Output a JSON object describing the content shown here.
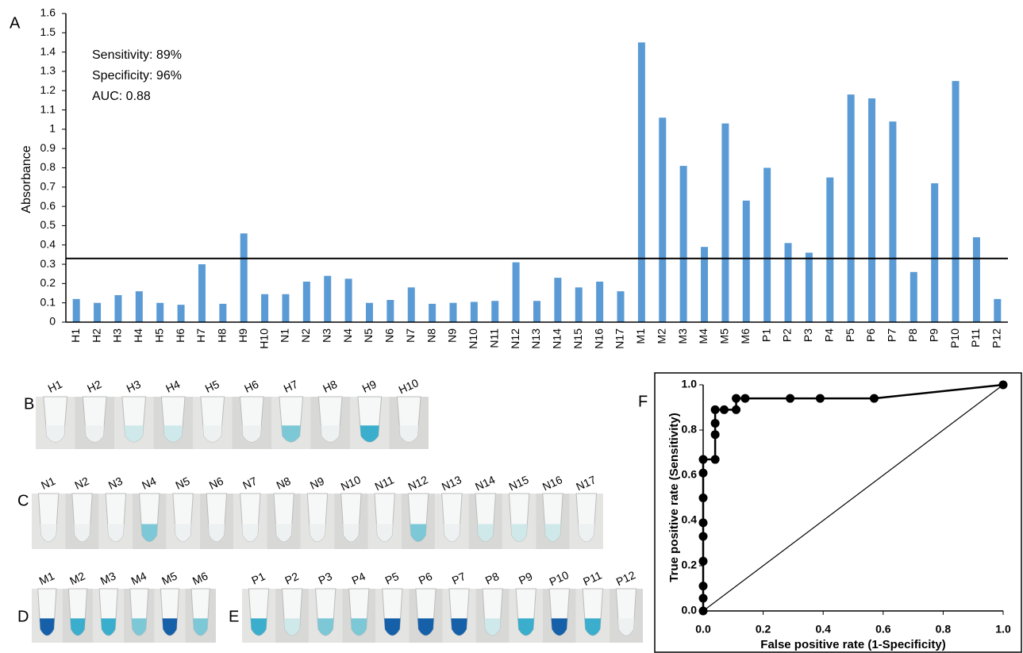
{
  "chart_data": [
    {
      "type": "bar",
      "panel": "A",
      "ylabel": "Absorbance",
      "annotations": [
        "Sensitivity: 89%",
        "Specificity: 96%",
        "AUC: 0.88"
      ],
      "categories": [
        "H1",
        "H2",
        "H3",
        "H4",
        "H5",
        "H6",
        "H7",
        "H8",
        "H9",
        "H10",
        "N1",
        "N2",
        "N3",
        "N4",
        "N5",
        "N6",
        "N7",
        "N8",
        "N9",
        "N10",
        "N11",
        "N12",
        "N13",
        "N14",
        "N15",
        "N16",
        "N17",
        "M1",
        "M2",
        "M3",
        "M4",
        "M5",
        "M6",
        "P1",
        "P2",
        "P3",
        "P4",
        "P5",
        "P6",
        "P7",
        "P8",
        "P9",
        "P10",
        "P11",
        "P12"
      ],
      "values": [
        0.12,
        0.1,
        0.14,
        0.16,
        0.1,
        0.09,
        0.3,
        0.095,
        0.46,
        0.145,
        0.145,
        0.21,
        0.24,
        0.225,
        0.1,
        0.115,
        0.18,
        0.095,
        0.1,
        0.105,
        0.11,
        0.31,
        0.11,
        0.23,
        0.18,
        0.21,
        0.16,
        1.45,
        1.06,
        0.81,
        0.39,
        1.03,
        0.63,
        0.8,
        0.41,
        0.36,
        0.75,
        1.18,
        1.16,
        1.04,
        0.26,
        0.72,
        1.25,
        0.44,
        0.12
      ],
      "color": "#5b9bd5",
      "threshold": 0.33,
      "ylim": [
        0,
        1.6
      ],
      "yticks": [
        0,
        0.1,
        0.2,
        0.3,
        0.4,
        0.5,
        0.6,
        0.7,
        0.8,
        0.9,
        1,
        1.1,
        1.2,
        1.3,
        1.4,
        1.5,
        1.6
      ]
    },
    {
      "type": "line",
      "panel": "F",
      "xlabel": "False positive rate (1-Specificity)",
      "ylabel": "True positive rate (Sensitivity)",
      "x": [
        0,
        0,
        0,
        0,
        0,
        0,
        0,
        0,
        0,
        0.04,
        0.04,
        0.04,
        0.04,
        0.07,
        0.11,
        0.11,
        0.14,
        0.29,
        0.39,
        0.57,
        1
      ],
      "values": [
        0,
        0.056,
        0.11,
        0.22,
        0.33,
        0.39,
        0.5,
        0.61,
        0.67,
        0.67,
        0.78,
        0.83,
        0.89,
        0.89,
        0.89,
        0.94,
        0.94,
        0.94,
        0.94,
        0.94,
        1
      ],
      "color": "#000000",
      "xlim": [
        0,
        1
      ],
      "ylim": [
        0,
        1
      ],
      "xticks": [
        {
          "value": 0,
          "label": "0.0"
        },
        0.2,
        0.4,
        0.6,
        0.8,
        {
          "value": 1,
          "label": "1.0"
        }
      ],
      "yticks": [
        {
          "value": 0,
          "label": "0.0"
        },
        0.2,
        0.4,
        0.6,
        0.8,
        {
          "value": 1,
          "label": "1.0"
        }
      ]
    }
  ],
  "photo_panels": [
    {
      "letter": "B",
      "labels": [
        "H1",
        "H2",
        "H3",
        "H4",
        "H5",
        "H6",
        "H7",
        "H8",
        "H9",
        "H10"
      ]
    },
    {
      "letter": "C",
      "labels": [
        "N1",
        "N2",
        "N3",
        "N4",
        "N5",
        "N6",
        "N7",
        "N8",
        "N9",
        "N10",
        "N11",
        "N12",
        "N13",
        "N14",
        "N15",
        "N16",
        "N17"
      ]
    },
    {
      "letter": "D",
      "labels": [
        "M1",
        "M2",
        "M3",
        "M4",
        "M5",
        "M6"
      ]
    },
    {
      "letter": "E",
      "labels": [
        "P1",
        "P2",
        "P3",
        "P4",
        "P5",
        "P6",
        "P7",
        "P8",
        "P9",
        "P10",
        "P11",
        "P12"
      ]
    }
  ]
}
